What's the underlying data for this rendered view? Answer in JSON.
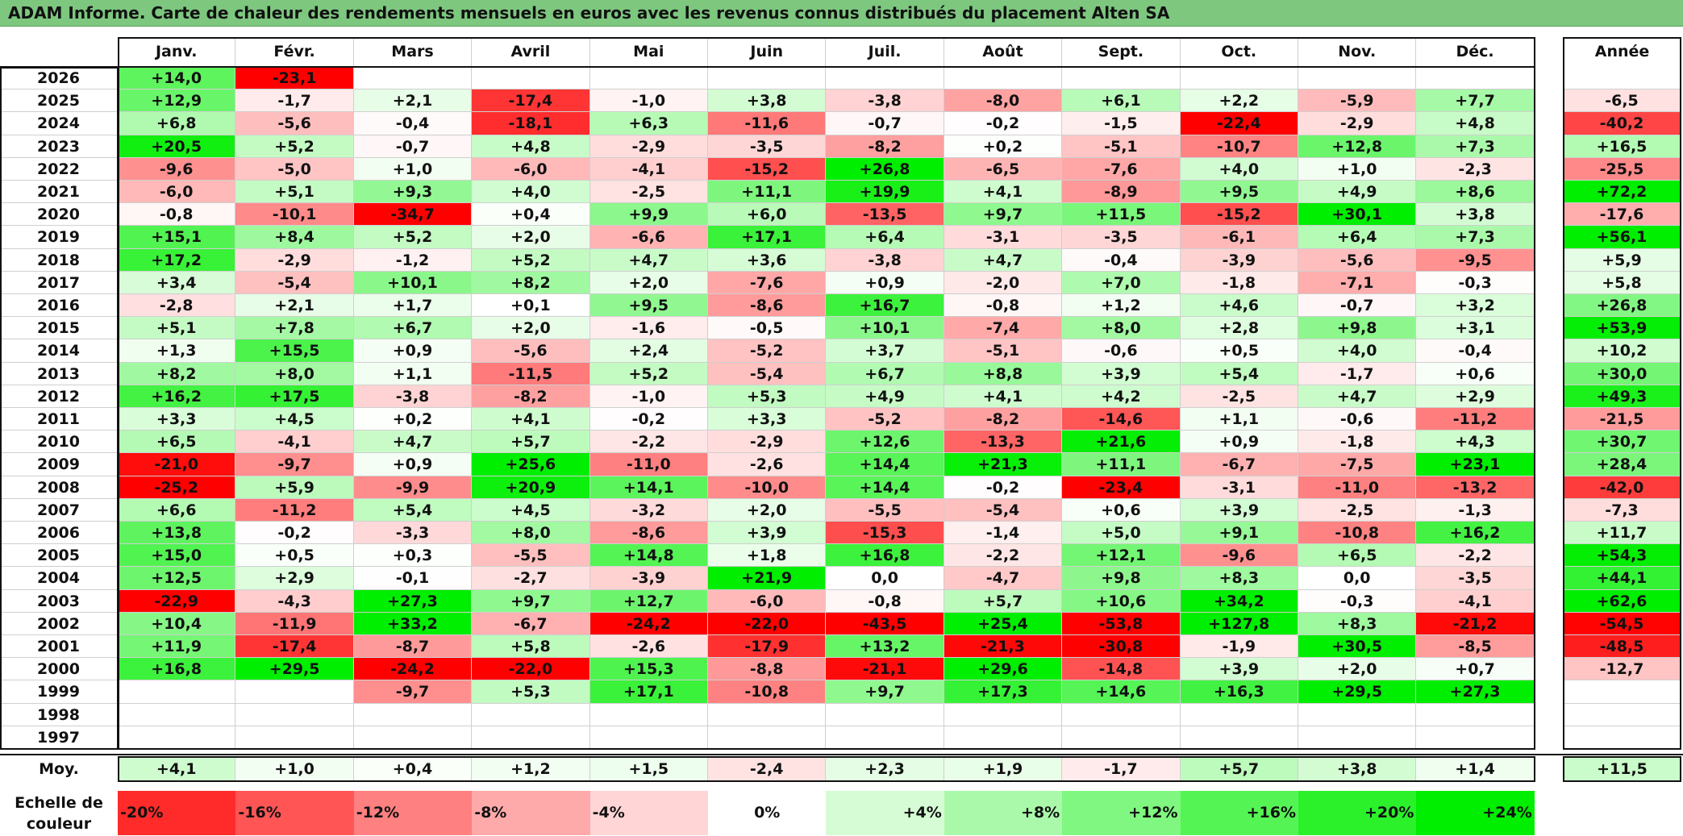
{
  "title": "ADAM Informe. Carte de chaleur des rendements mensuels en euros avec les revenus connus distribués du placement Alten SA",
  "chart_data": {
    "type": "heatmap",
    "months": [
      "Janv.",
      "Févr.",
      "Mars",
      "Avril",
      "Mai",
      "Juin",
      "Juil.",
      "Août",
      "Sept.",
      "Oct.",
      "Nov.",
      "Déc."
    ],
    "annual_label": "Année",
    "rows": [
      {
        "year": "2026",
        "values": [
          "+14,0",
          "-23,1",
          "",
          "",
          "",
          "",
          "",
          "",
          "",
          "",
          "",
          ""
        ],
        "annual": ""
      },
      {
        "year": "2025",
        "values": [
          "+12,9",
          "-1,7",
          "+2,1",
          "-17,4",
          "-1,0",
          "+3,8",
          "-3,8",
          "-8,0",
          "+6,1",
          "+2,2",
          "-5,9",
          "+7,7"
        ],
        "annual": "-6,5"
      },
      {
        "year": "2024",
        "values": [
          "+6,8",
          "-5,6",
          "-0,4",
          "-18,1",
          "+6,3",
          "-11,6",
          "-0,7",
          "-0,2",
          "-1,5",
          "-22,4",
          "-2,9",
          "+4,8"
        ],
        "annual": "-40,2"
      },
      {
        "year": "2023",
        "values": [
          "+20,5",
          "+5,2",
          "-0,7",
          "+4,8",
          "-2,9",
          "-3,5",
          "-8,2",
          "+0,2",
          "-5,1",
          "-10,7",
          "+12,8",
          "+7,3"
        ],
        "annual": "+16,5"
      },
      {
        "year": "2022",
        "values": [
          "-9,6",
          "-5,0",
          "+1,0",
          "-6,0",
          "-4,1",
          "-15,2",
          "+26,8",
          "-6,5",
          "-7,6",
          "+4,0",
          "+1,0",
          "-2,3"
        ],
        "annual": "-25,5"
      },
      {
        "year": "2021",
        "values": [
          "-6,0",
          "+5,1",
          "+9,3",
          "+4,0",
          "-2,5",
          "+11,1",
          "+19,9",
          "+4,1",
          "-8,9",
          "+9,5",
          "+4,9",
          "+8,6"
        ],
        "annual": "+72,2"
      },
      {
        "year": "2020",
        "values": [
          "-0,8",
          "-10,1",
          "-34,7",
          "+0,4",
          "+9,9",
          "+6,0",
          "-13,5",
          "+9,7",
          "+11,5",
          "-15,2",
          "+30,1",
          "+3,8"
        ],
        "annual": "-17,6"
      },
      {
        "year": "2019",
        "values": [
          "+15,1",
          "+8,4",
          "+5,2",
          "+2,0",
          "-6,6",
          "+17,1",
          "+6,4",
          "-3,1",
          "-3,5",
          "-6,1",
          "+6,4",
          "+7,3"
        ],
        "annual": "+56,1"
      },
      {
        "year": "2018",
        "values": [
          "+17,2",
          "-2,9",
          "-1,2",
          "+5,2",
          "+4,7",
          "+3,6",
          "-3,8",
          "+4,7",
          "-0,4",
          "-3,9",
          "-5,6",
          "-9,5"
        ],
        "annual": "+5,9"
      },
      {
        "year": "2017",
        "values": [
          "+3,4",
          "-5,4",
          "+10,1",
          "+8,2",
          "+2,0",
          "-7,6",
          "+0,9",
          "-2,0",
          "+7,0",
          "-1,8",
          "-7,1",
          "-0,3"
        ],
        "annual": "+5,8"
      },
      {
        "year": "2016",
        "values": [
          "-2,8",
          "+2,1",
          "+1,7",
          "+0,1",
          "+9,5",
          "-8,6",
          "+16,7",
          "-0,8",
          "+1,2",
          "+4,6",
          "-0,7",
          "+3,2"
        ],
        "annual": "+26,8"
      },
      {
        "year": "2015",
        "values": [
          "+5,1",
          "+7,8",
          "+6,7",
          "+2,0",
          "-1,6",
          "-0,5",
          "+10,1",
          "-7,4",
          "+8,0",
          "+2,8",
          "+9,8",
          "+3,1"
        ],
        "annual": "+53,9"
      },
      {
        "year": "2014",
        "values": [
          "+1,3",
          "+15,5",
          "+0,9",
          "-5,6",
          "+2,4",
          "-5,2",
          "+3,7",
          "-5,1",
          "-0,6",
          "+0,5",
          "+4,0",
          "-0,4"
        ],
        "annual": "+10,2"
      },
      {
        "year": "2013",
        "values": [
          "+8,2",
          "+8,0",
          "+1,1",
          "-11,5",
          "+5,2",
          "-5,4",
          "+6,7",
          "+8,8",
          "+3,9",
          "+5,4",
          "-1,7",
          "+0,6"
        ],
        "annual": "+30,0"
      },
      {
        "year": "2012",
        "values": [
          "+16,2",
          "+17,5",
          "-3,8",
          "-8,2",
          "-1,0",
          "+5,3",
          "+4,9",
          "+4,1",
          "+4,2",
          "-2,5",
          "+4,7",
          "+2,9"
        ],
        "annual": "+49,3"
      },
      {
        "year": "2011",
        "values": [
          "+3,3",
          "+4,5",
          "+0,2",
          "+4,1",
          "-0,2",
          "+3,3",
          "-5,2",
          "-8,2",
          "-14,6",
          "+1,1",
          "-0,6",
          "-11,2"
        ],
        "annual": "-21,5"
      },
      {
        "year": "2010",
        "values": [
          "+6,5",
          "-4,1",
          "+4,7",
          "+5,7",
          "-2,2",
          "-2,9",
          "+12,6",
          "-13,3",
          "+21,6",
          "+0,9",
          "-1,8",
          "+4,3"
        ],
        "annual": "+30,7"
      },
      {
        "year": "2009",
        "values": [
          "-21,0",
          "-9,7",
          "+0,9",
          "+25,6",
          "-11,0",
          "-2,6",
          "+14,4",
          "+21,3",
          "+11,1",
          "-6,7",
          "-7,5",
          "+23,1"
        ],
        "annual": "+28,4"
      },
      {
        "year": "2008",
        "values": [
          "-25,2",
          "+5,9",
          "-9,9",
          "+20,9",
          "+14,1",
          "-10,0",
          "+14,4",
          "-0,2",
          "-23,4",
          "-3,1",
          "-11,0",
          "-13,2"
        ],
        "annual": "-42,0"
      },
      {
        "year": "2007",
        "values": [
          "+6,6",
          "-11,2",
          "+5,4",
          "+4,5",
          "-3,2",
          "+2,0",
          "-5,5",
          "-5,4",
          "+0,6",
          "+3,9",
          "-2,5",
          "-1,3"
        ],
        "annual": "-7,3"
      },
      {
        "year": "2006",
        "values": [
          "+13,8",
          "-0,2",
          "-3,3",
          "+8,0",
          "-8,6",
          "+3,9",
          "-15,3",
          "-1,4",
          "+5,0",
          "+9,1",
          "-10,8",
          "+16,2"
        ],
        "annual": "+11,7"
      },
      {
        "year": "2005",
        "values": [
          "+15,0",
          "+0,5",
          "+0,3",
          "-5,5",
          "+14,8",
          "+1,8",
          "+16,8",
          "-2,2",
          "+12,1",
          "-9,6",
          "+6,5",
          "-2,2"
        ],
        "annual": "+54,3"
      },
      {
        "year": "2004",
        "values": [
          "+12,5",
          "+2,9",
          "-0,1",
          "-2,7",
          "-3,9",
          "+21,9",
          "0,0",
          "-4,7",
          "+9,8",
          "+8,3",
          "0,0",
          "-3,5"
        ],
        "annual": "+44,1"
      },
      {
        "year": "2003",
        "values": [
          "-22,9",
          "-4,3",
          "+27,3",
          "+9,7",
          "+12,7",
          "-6,0",
          "-0,8",
          "+5,7",
          "+10,6",
          "+34,2",
          "-0,3",
          "-4,1"
        ],
        "annual": "+62,6"
      },
      {
        "year": "2002",
        "values": [
          "+10,4",
          "-11,9",
          "+33,2",
          "-6,7",
          "-24,2",
          "-22,0",
          "-43,5",
          "+25,4",
          "-53,8",
          "+127,8",
          "+8,3",
          "-21,2"
        ],
        "annual": "-54,5"
      },
      {
        "year": "2001",
        "values": [
          "+11,9",
          "-17,4",
          "-8,7",
          "+5,8",
          "-2,6",
          "-17,9",
          "+13,2",
          "-21,3",
          "-30,8",
          "-1,9",
          "+30,5",
          "-8,5"
        ],
        "annual": "-48,5"
      },
      {
        "year": "2000",
        "values": [
          "+16,8",
          "+29,5",
          "-24,2",
          "-22,0",
          "+15,3",
          "-8,8",
          "-21,1",
          "+29,6",
          "-14,8",
          "+3,9",
          "+2,0",
          "+0,7"
        ],
        "annual": "-12,7"
      },
      {
        "year": "1999",
        "values": [
          "",
          "",
          "-9,7",
          "+5,3",
          "+17,1",
          "-10,8",
          "+9,7",
          "+17,3",
          "+14,6",
          "+16,3",
          "+29,5",
          "+27,3"
        ],
        "annual": ""
      },
      {
        "year": "1998",
        "values": [
          "",
          "",
          "",
          "",
          "",
          "",
          "",
          "",
          "",
          "",
          "",
          ""
        ],
        "annual": ""
      },
      {
        "year": "1997",
        "values": [
          "",
          "",
          "",
          "",
          "",
          "",
          "",
          "",
          "",
          "",
          "",
          ""
        ],
        "annual": ""
      }
    ],
    "average": {
      "label": "Moy.",
      "values": [
        "+4,1",
        "+1,0",
        "+0,4",
        "+1,2",
        "+1,5",
        "-2,4",
        "+2,3",
        "+1,9",
        "-1,7",
        "+5,7",
        "+3,8",
        "+1,4"
      ],
      "annual": "+11,5"
    },
    "color_scale": {
      "label": "Echelle de couleur",
      "stops": [
        {
          "label": "-20%",
          "value": -20
        },
        {
          "label": "-16%",
          "value": -16
        },
        {
          "label": "-12%",
          "value": -12
        },
        {
          "label": "-8%",
          "value": -8
        },
        {
          "label": "-4%",
          "value": -4
        },
        {
          "label": "0%",
          "value": 0
        },
        {
          "label": "+4%",
          "value": 4
        },
        {
          "label": "+8%",
          "value": 8
        },
        {
          "label": "+12%",
          "value": 12
        },
        {
          "label": "+16%",
          "value": 16
        },
        {
          "label": "+20%",
          "value": 20
        },
        {
          "label": "+24%",
          "value": 24
        }
      ],
      "negative_color": "#ff0000",
      "positive_color": "#00ee00",
      "neutral_color": "#ffffff"
    }
  }
}
